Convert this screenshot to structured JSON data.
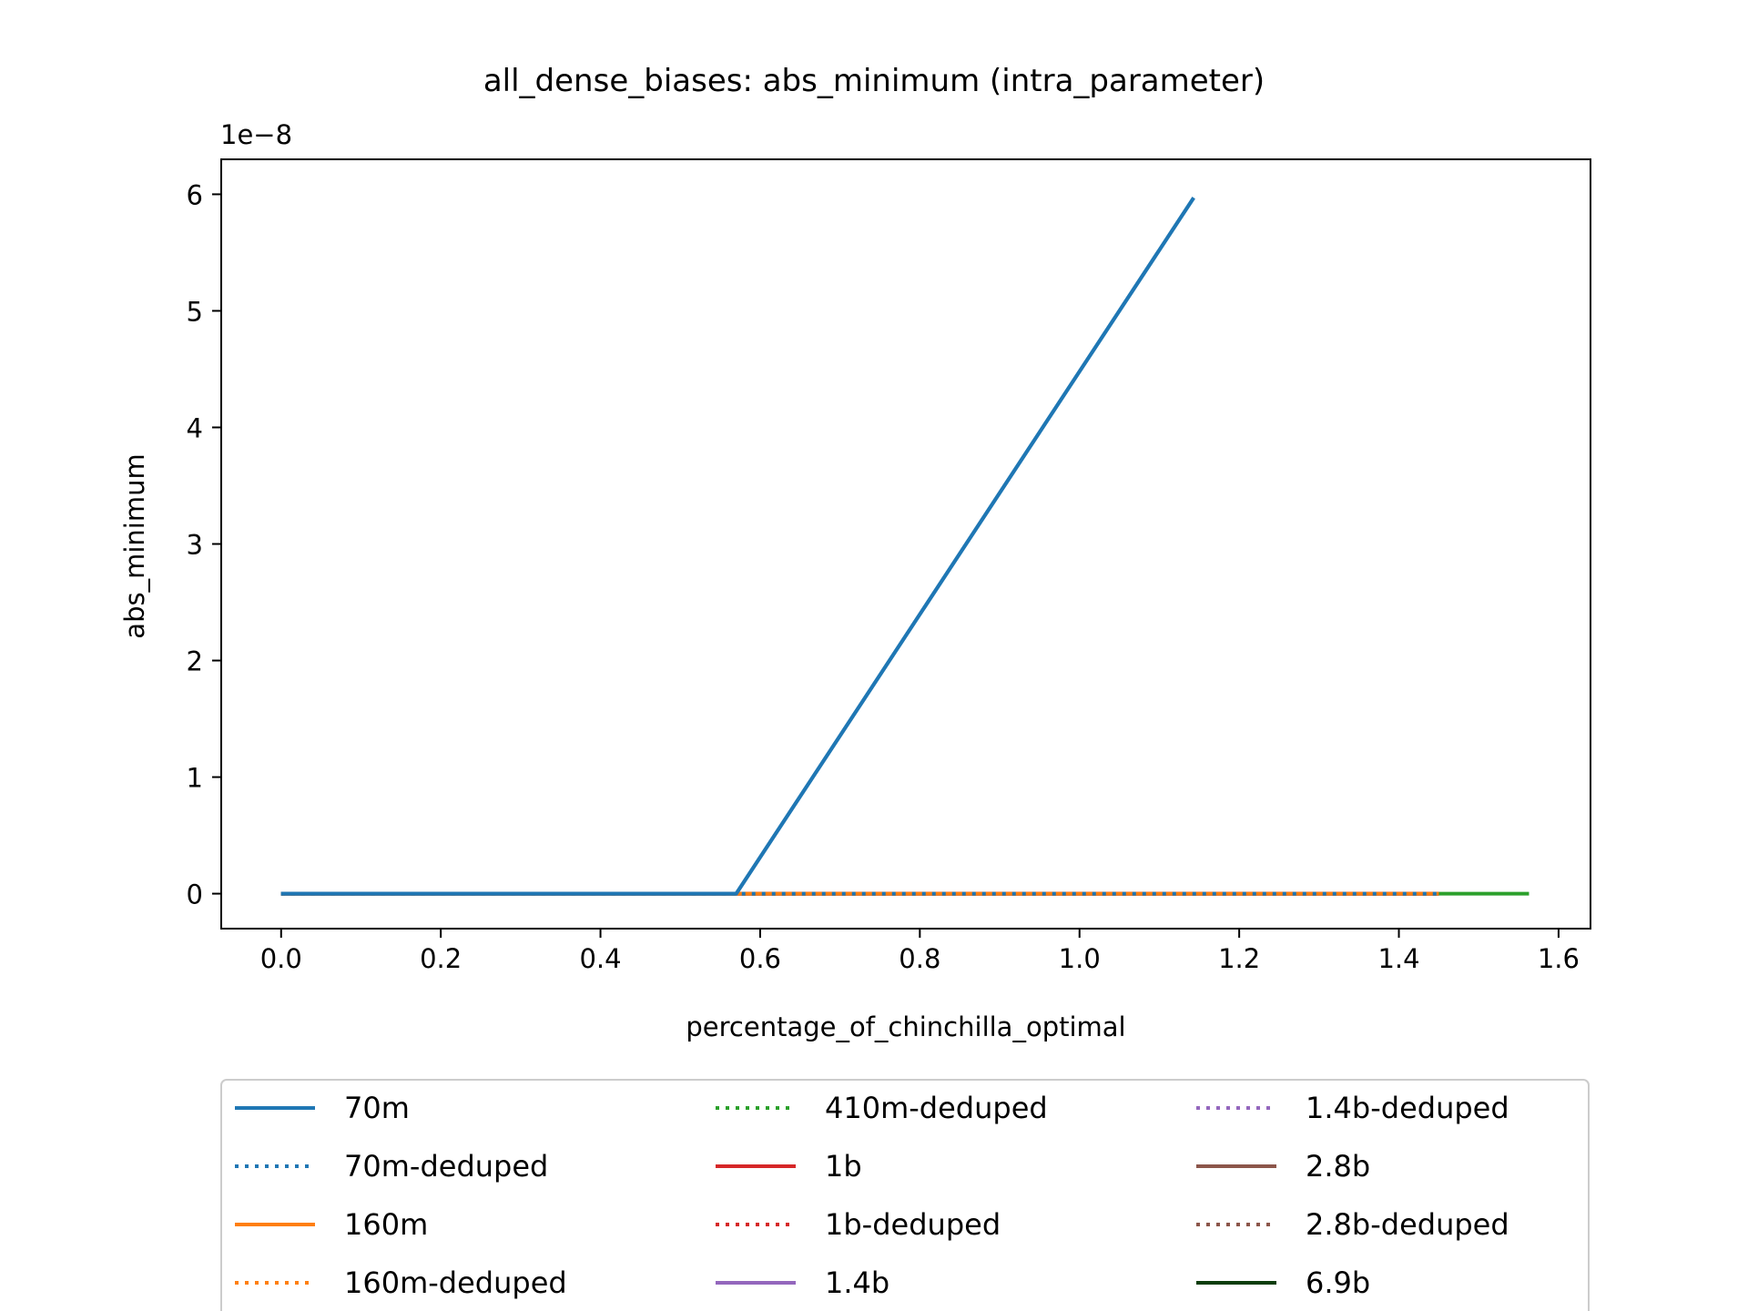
{
  "chart_data": {
    "type": "line",
    "title": "all_dense_biases: abs_minimum (intra_parameter)",
    "xlabel": "percentage_of_chinchilla_optimal",
    "ylabel": "abs_minimum",
    "y_offset_text": "1e−8",
    "y_scale_factor": 1e-08,
    "xlim": [
      -0.075,
      1.64
    ],
    "ylim": [
      -0.3,
      6.3
    ],
    "x_ticks": [
      0.0,
      0.2,
      0.4,
      0.6,
      0.8,
      1.0,
      1.2,
      1.4,
      1.6
    ],
    "x_tick_labels": [
      "0.0",
      "0.2",
      "0.4",
      "0.6",
      "0.8",
      "1.0",
      "1.2",
      "1.4",
      "1.6"
    ],
    "y_ticks": [
      0,
      1,
      2,
      3,
      4,
      5,
      6
    ],
    "y_tick_labels": [
      "0",
      "1",
      "2",
      "3",
      "4",
      "5",
      "6"
    ],
    "grid": false,
    "legend_placement": "bottom-center, outside plot, 3 columns",
    "series": [
      {
        "name": "70m",
        "color": "#1f77b4",
        "style": "solid",
        "x": [
          0.0,
          0.57,
          1.143
        ],
        "y": [
          0,
          0,
          5.97
        ]
      },
      {
        "name": "70m-deduped",
        "color": "#1f77b4",
        "style": "dotted",
        "x": [
          0.0,
          1.45
        ],
        "y": [
          0,
          0
        ]
      },
      {
        "name": "160m",
        "color": "#ff7f0e",
        "style": "solid",
        "x": [
          0.0,
          1.45
        ],
        "y": [
          0,
          0
        ]
      },
      {
        "name": "160m-deduped",
        "color": "#ff7f0e",
        "style": "dotted",
        "x": [
          0.0,
          1.45
        ],
        "y": [
          0,
          0
        ]
      },
      {
        "name": "410m-deduped",
        "color": "#2ca02c",
        "style": "dotted",
        "x": [
          0.0,
          1.45
        ],
        "y": [
          0,
          0
        ]
      },
      {
        "name": "1b",
        "color": "#d62728",
        "style": "solid",
        "x": [
          0.0,
          1.45
        ],
        "y": [
          0,
          0
        ]
      },
      {
        "name": "1b-deduped",
        "color": "#d62728",
        "style": "dotted",
        "x": [
          0.0,
          1.45
        ],
        "y": [
          0,
          0
        ]
      },
      {
        "name": "1.4b",
        "color": "#9467bd",
        "style": "solid",
        "x": [
          0.0,
          1.45
        ],
        "y": [
          0,
          0
        ]
      },
      {
        "name": "1.4b-deduped",
        "color": "#9467bd",
        "style": "dotted",
        "x": [
          0.0,
          1.45
        ],
        "y": [
          0,
          0
        ]
      },
      {
        "name": "2.8b",
        "color": "#8c564b",
        "style": "solid",
        "x": [
          0.0,
          1.45
        ],
        "y": [
          0,
          0
        ]
      },
      {
        "name": "2.8b-deduped",
        "color": "#8c564b",
        "style": "dotted",
        "x": [
          0.0,
          1.45
        ],
        "y": [
          0,
          0
        ]
      },
      {
        "name": "6.9b",
        "color": "#0b3d0b",
        "style": "solid",
        "x": [
          0.0,
          1.45
        ],
        "y": [
          0,
          0
        ]
      }
    ],
    "extra_lines": [
      {
        "color": "#2ca02c",
        "style": "solid",
        "x": [
          0.0,
          1.563
        ],
        "y": [
          0,
          0
        ]
      }
    ],
    "legend_order": [
      "70m",
      "70m-deduped",
      "160m",
      "160m-deduped",
      "410m-deduped",
      "1b",
      "1b-deduped",
      "1.4b",
      "1.4b-deduped",
      "2.8b",
      "2.8b-deduped",
      "6.9b"
    ]
  }
}
